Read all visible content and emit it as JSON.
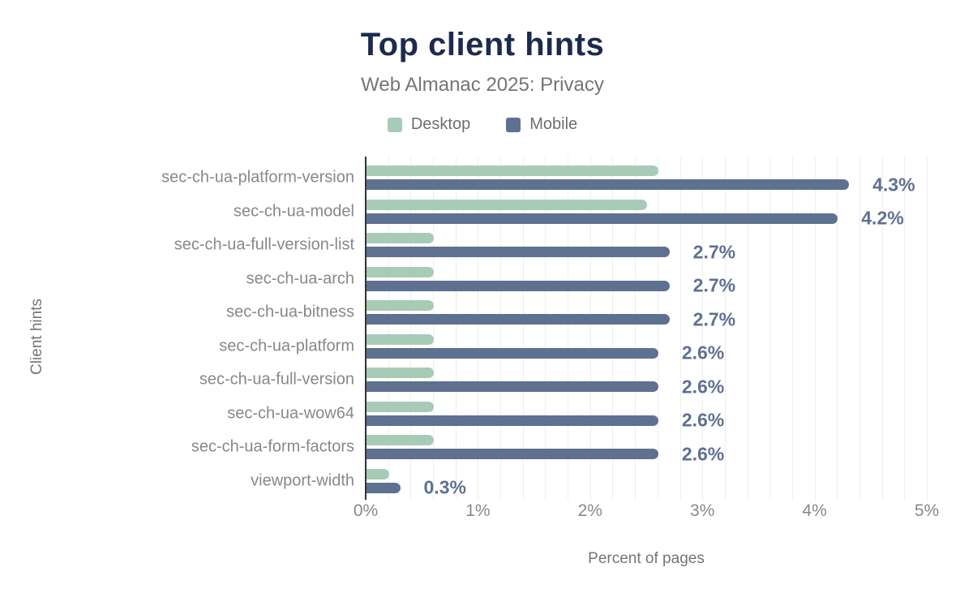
{
  "figure": {
    "title": "Top client hints",
    "subtitle": "Web Almanac 2025: Privacy"
  },
  "legend": [
    {
      "label": "Desktop",
      "color": "#a8cbb8"
    },
    {
      "label": "Mobile",
      "color": "#5f7191"
    }
  ],
  "axes": {
    "y_title": "Client hints",
    "x_title": "Percent of pages",
    "x_ticks": [
      "0%",
      "1%",
      "2%",
      "3%",
      "4%",
      "5%"
    ]
  },
  "colors": {
    "title": "#1c2b4d",
    "subtitle": "#757575",
    "desktop_bar": "#a8cbb8",
    "mobile_bar": "#5f7191",
    "value_label": "#5f7191",
    "gridline": "#ededed",
    "axis_line": "#333333",
    "category_label": "#86888b"
  },
  "chart_data": {
    "type": "bar",
    "orientation": "horizontal",
    "title": "Top client hints",
    "subtitle": "Web Almanac 2025: Privacy",
    "xlabel": "Percent of pages",
    "ylabel": "Client hints",
    "xlim": [
      0,
      5
    ],
    "grid": true,
    "grid_interval": 0.2,
    "legend_position": "top",
    "categories": [
      "sec-ch-ua-platform-version",
      "sec-ch-ua-model",
      "sec-ch-ua-full-version-list",
      "sec-ch-ua-arch",
      "sec-ch-ua-bitness",
      "sec-ch-ua-platform",
      "sec-ch-ua-full-version",
      "sec-ch-ua-wow64",
      "sec-ch-ua-form-factors",
      "viewport-width"
    ],
    "series": [
      {
        "name": "Desktop",
        "color": "#a8cbb8",
        "values": [
          2.6,
          2.5,
          0.6,
          0.6,
          0.6,
          0.6,
          0.6,
          0.6,
          0.6,
          0.2
        ]
      },
      {
        "name": "Mobile",
        "color": "#5f7191",
        "values": [
          4.3,
          4.2,
          2.7,
          2.7,
          2.7,
          2.6,
          2.6,
          2.6,
          2.6,
          0.3
        ]
      }
    ],
    "bar_labels": [
      "4.3%",
      "4.2%",
      "2.7%",
      "2.7%",
      "2.7%",
      "2.6%",
      "2.6%",
      "2.6%",
      "2.6%",
      "0.3%"
    ],
    "bar_labels_for_series": "Mobile"
  }
}
